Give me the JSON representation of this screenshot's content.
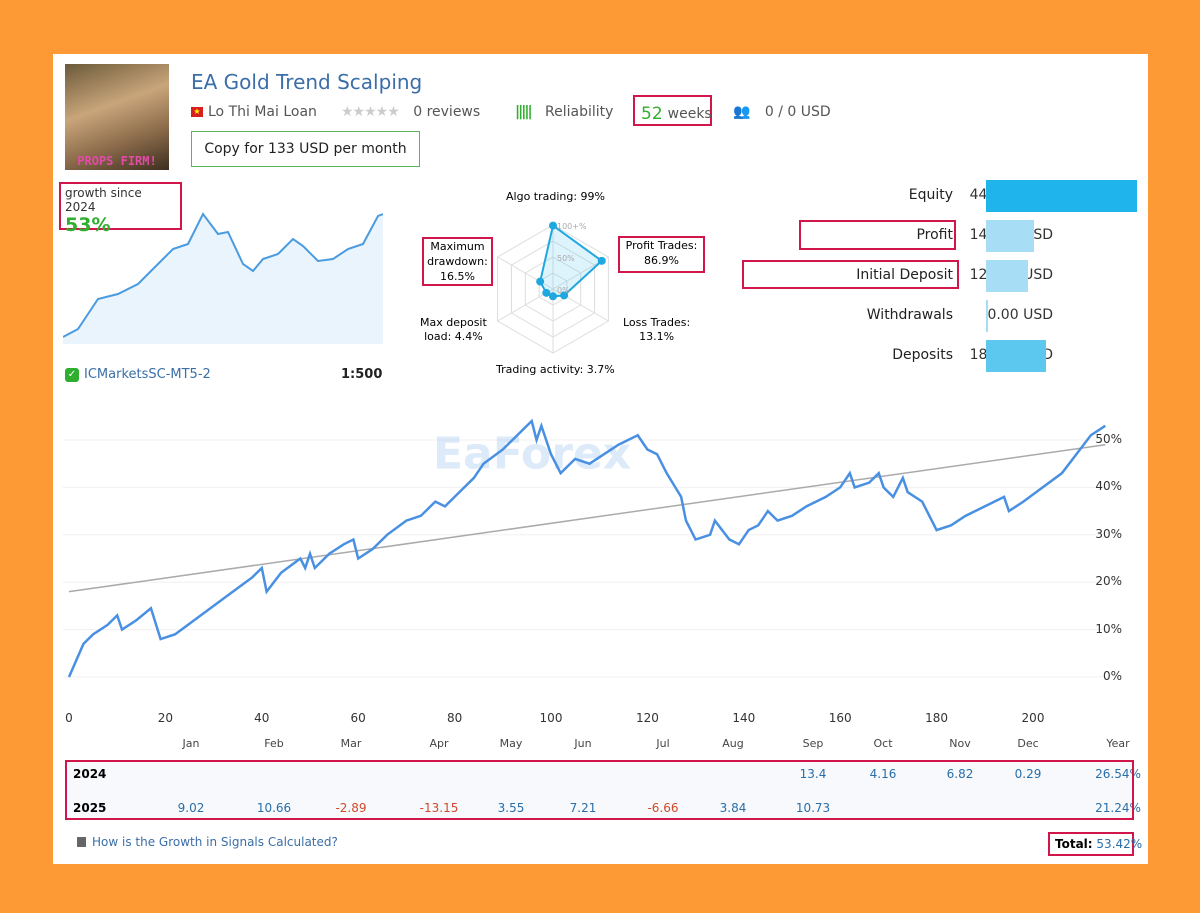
{
  "header": {
    "title": "EA Gold Trend Scalping",
    "author": "Lo Thi Mai Loan",
    "reviews": "0 reviews",
    "reliability": "Reliability",
    "weeks_num": "52",
    "weeks_label": "weeks",
    "subscribers": "0 / 0 USD",
    "copy_button": "Copy for 133 USD per month",
    "avatar_text": "PROPS FIRM!"
  },
  "growth": {
    "label": "growth since 2024",
    "value": "53%",
    "broker": "ICMarketsSC-MT5-2",
    "leverage": "1:500"
  },
  "radar": {
    "algo": "Algo trading: 99%",
    "profit": [
      "Profit Trades:",
      "86.9%"
    ],
    "loss": [
      "Loss Trades:",
      "13.1%"
    ],
    "activity": "Trading activity: 3.7%",
    "deposit_load": [
      "Max deposit",
      "load: 4.4%"
    ],
    "drawdown": [
      "Maximum",
      "drawdown:",
      "16.5%"
    ],
    "scale": [
      "100+%",
      "50%",
      "0%"
    ],
    "values": [
      99,
      86.9,
      13.1,
      3.7,
      4.4,
      16.5
    ]
  },
  "stats": [
    {
      "label": "Equity",
      "value": "447.30 USD",
      "fraction": 1.0,
      "color": "#1fb4ec"
    },
    {
      "label": "Profit",
      "value": "142.22 USD",
      "fraction": 0.32,
      "color": "#a8def5"
    },
    {
      "label": "Initial Deposit",
      "value": "124.48 USD",
      "fraction": 0.28,
      "color": "#a8def5"
    },
    {
      "label": "Withdrawals",
      "value": "0.00 USD",
      "fraction": 0.0,
      "color": "#a8def5"
    },
    {
      "label": "Deposits",
      "value": "180.60 USD",
      "fraction": 0.4,
      "color": "#5cc8f0"
    }
  ],
  "chart_data": {
    "type": "line",
    "xlim": [
      0,
      215
    ],
    "ylim": [
      -5,
      55
    ],
    "x_ticks": [
      "0",
      "20",
      "40",
      "60",
      "80",
      "100",
      "120",
      "140",
      "160",
      "180",
      "200"
    ],
    "y_ticks": [
      "0%",
      "10%",
      "20%",
      "30%",
      "40%",
      "50%"
    ],
    "watermark": "EaForex",
    "trend": [
      [
        0,
        18
      ],
      [
        215,
        49
      ]
    ],
    "series": [
      [
        0,
        0
      ],
      [
        3,
        7
      ],
      [
        5,
        9
      ],
      [
        8,
        11
      ],
      [
        10,
        13
      ],
      [
        11,
        10
      ],
      [
        14,
        12
      ],
      [
        17,
        14.5
      ],
      [
        19,
        8
      ],
      [
        22,
        9
      ],
      [
        26,
        12
      ],
      [
        30,
        15
      ],
      [
        34,
        18
      ],
      [
        38,
        21
      ],
      [
        40,
        23
      ],
      [
        41,
        18
      ],
      [
        44,
        22
      ],
      [
        48,
        25
      ],
      [
        49,
        23
      ],
      [
        50,
        26
      ],
      [
        51,
        23
      ],
      [
        54,
        26
      ],
      [
        57,
        28
      ],
      [
        59,
        29
      ],
      [
        60,
        25
      ],
      [
        63,
        27
      ],
      [
        66,
        30
      ],
      [
        70,
        33
      ],
      [
        73,
        34
      ],
      [
        76,
        37
      ],
      [
        78,
        36
      ],
      [
        81,
        39
      ],
      [
        84,
        42
      ],
      [
        86,
        45
      ],
      [
        90,
        48
      ],
      [
        94,
        52
      ],
      [
        96,
        54
      ],
      [
        97,
        50
      ],
      [
        98,
        53
      ],
      [
        100,
        47
      ],
      [
        102,
        43
      ],
      [
        105,
        46
      ],
      [
        108,
        45
      ],
      [
        111,
        47
      ],
      [
        114,
        49
      ],
      [
        118,
        51
      ],
      [
        120,
        48
      ],
      [
        122,
        47
      ],
      [
        124,
        43
      ],
      [
        127,
        38
      ],
      [
        128,
        33
      ],
      [
        130,
        29
      ],
      [
        133,
        30
      ],
      [
        134,
        33
      ],
      [
        137,
        29
      ],
      [
        139,
        28
      ],
      [
        141,
        31
      ],
      [
        143,
        32
      ],
      [
        145,
        35
      ],
      [
        147,
        33
      ],
      [
        150,
        34
      ],
      [
        153,
        36
      ],
      [
        157,
        38
      ],
      [
        160,
        40
      ],
      [
        162,
        43
      ],
      [
        163,
        40
      ],
      [
        166,
        41
      ],
      [
        168,
        43
      ],
      [
        169,
        40
      ],
      [
        171,
        38
      ],
      [
        173,
        42
      ],
      [
        174,
        39
      ],
      [
        177,
        37
      ],
      [
        180,
        31
      ],
      [
        183,
        32
      ],
      [
        186,
        34
      ],
      [
        190,
        36
      ],
      [
        194,
        38
      ],
      [
        195,
        35
      ],
      [
        198,
        37
      ],
      [
        202,
        40
      ],
      [
        206,
        43
      ],
      [
        209,
        47
      ],
      [
        212,
        51
      ],
      [
        215,
        53
      ]
    ]
  },
  "months": [
    "Jan",
    "Feb",
    "Mar",
    "Apr",
    "May",
    "Jun",
    "Jul",
    "Aug",
    "Sep",
    "Oct",
    "Nov",
    "Dec",
    "Year"
  ],
  "years": [
    {
      "year": "2024",
      "values": [
        "",
        "",
        "",
        "",
        "",
        "",
        "",
        "",
        "13.4",
        "4.16",
        "6.82",
        "0.29",
        "26.54%"
      ]
    },
    {
      "year": "2025",
      "values": [
        "9.02",
        "10.66",
        "-2.89",
        "-13.15",
        "3.55",
        "7.21",
        "-6.66",
        "3.84",
        "10.73",
        "",
        "",
        "",
        "21.24%"
      ]
    }
  ],
  "footer": {
    "help_link": "How is the Growth in Signals Calculated?",
    "total_label": "Total:",
    "total_value": "53.42%"
  }
}
